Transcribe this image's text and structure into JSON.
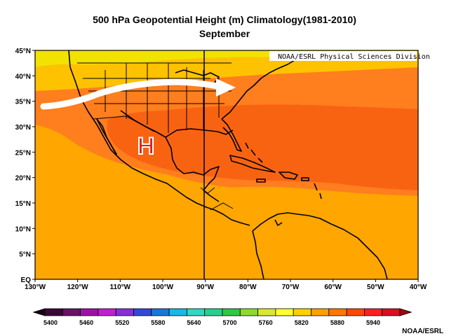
{
  "title": "500 hPa Geopotential Height (m) Climatology(1981-2010)",
  "subtitle": "September",
  "watermark": "NOAA/ESRL Physical Sciences Division",
  "credit": "NOAA/ESRL",
  "high_marker": "H",
  "lat_labels": [
    "45°N",
    "40°N",
    "35°N",
    "30°N",
    "25°N",
    "20°N",
    "15°N",
    "10°N",
    "5°N",
    "EQ"
  ],
  "lon_labels": [
    "130°W",
    "120°W",
    "110°W",
    "100°W",
    "90°W",
    "80°W",
    "70°W",
    "60°W",
    "50°W",
    "40°W"
  ],
  "colorbar": {
    "tick_labels": [
      "5400",
      "5460",
      "5520",
      "5580",
      "5640",
      "5700",
      "5760",
      "5820",
      "5880",
      "5940"
    ],
    "colors": [
      "#3a0838",
      "#6a1066",
      "#a010a8",
      "#c020d0",
      "#8830d8",
      "#3448d8",
      "#1878d8",
      "#18b8e8",
      "#30d8c0",
      "#28d090",
      "#30c840",
      "#90d830",
      "#d8e830",
      "#ffff30",
      "#ffd000",
      "#ffa000",
      "#ff7800",
      "#ff4800",
      "#ff2020",
      "#d81020"
    ]
  },
  "fill_colors": {
    "yellow": "#f2e200",
    "gold": "#ffc200",
    "orange": "#ffa600",
    "dark_orange": "#ff7e1e",
    "red_orange": "#f86312",
    "ocean": "#ffa300"
  }
}
